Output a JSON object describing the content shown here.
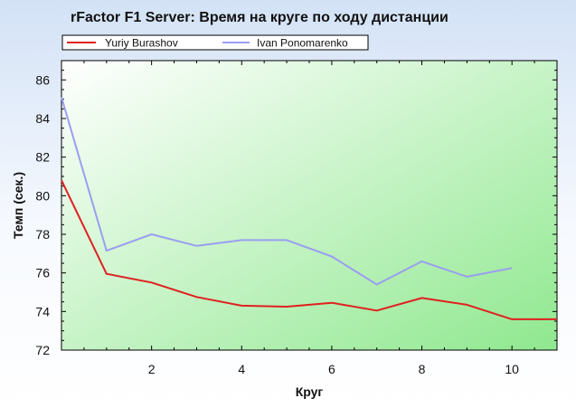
{
  "chart_data": {
    "type": "line",
    "title": "rFactor F1 Server: Время на круге по ходу дистанции",
    "xlabel": "Круг",
    "ylabel": "Темп (сек.)",
    "xlim": [
      0,
      11
    ],
    "ylim": [
      72,
      87
    ],
    "xticks": [
      2,
      4,
      6,
      8,
      10
    ],
    "yticks": [
      72,
      74,
      76,
      78,
      80,
      82,
      84,
      86
    ],
    "grid": false,
    "legend": "top-left",
    "background_gradient": [
      "#ffffff",
      "#8fe88f"
    ],
    "series": [
      {
        "name": "Yuriy Burashov",
        "color": "#e02020",
        "x": [
          0,
          1,
          2,
          3,
          4,
          5,
          6,
          7,
          8,
          9,
          10,
          11
        ],
        "values": [
          80.8,
          75.95,
          75.5,
          74.75,
          74.3,
          74.25,
          74.45,
          74.05,
          74.7,
          74.35,
          73.6,
          73.6
        ]
      },
      {
        "name": "Ivan Ponomarenko",
        "color": "#9a9ef0",
        "x": [
          0,
          1,
          2,
          3,
          4,
          5,
          6,
          7,
          8,
          9,
          10
        ],
        "values": [
          85.1,
          77.15,
          78.0,
          77.4,
          77.7,
          77.7,
          76.85,
          75.4,
          76.6,
          75.8,
          76.25
        ]
      }
    ]
  }
}
